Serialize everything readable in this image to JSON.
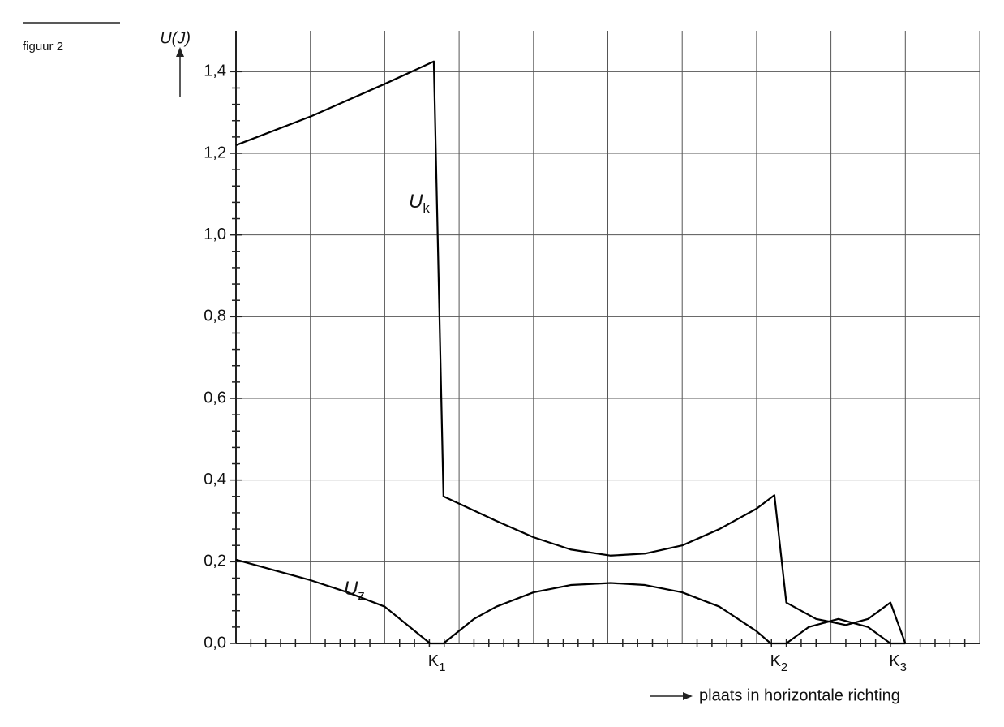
{
  "figure_label": "figuur 2",
  "chart_data": {
    "type": "line",
    "y_label": "U(J)",
    "x_label": "plaats in horizontale richting",
    "xlim": [
      0,
      10
    ],
    "xticks": [
      0,
      1,
      2,
      3,
      4,
      5,
      6,
      7,
      8,
      9,
      10
    ],
    "ylim": [
      0,
      1.5
    ],
    "yticks": [
      {
        "value": 0,
        "label": "0,0"
      },
      {
        "value": 0.2,
        "label": "0,2"
      },
      {
        "value": 0.4,
        "label": "0,4"
      },
      {
        "value": 0.6,
        "label": "0,6"
      },
      {
        "value": 0.8,
        "label": "0,8"
      },
      {
        "value": 1.0,
        "label": "1,0"
      },
      {
        "value": 1.2,
        "label": "1,2"
      },
      {
        "value": 1.4,
        "label": "1,4"
      }
    ],
    "grid": true,
    "x_markers": [
      {
        "label": "K",
        "sub": "1",
        "x": 2.7
      },
      {
        "label": "K",
        "sub": "2",
        "x": 7.3
      },
      {
        "label": "K",
        "sub": "3",
        "x": 8.9
      }
    ],
    "series": [
      {
        "name": "U",
        "name_sub": "k",
        "color": "#000000",
        "x": [
          0,
          1,
          2,
          2.66,
          2.79,
          3.5,
          4,
          4.5,
          5.04,
          5.5,
          6,
          6.5,
          7,
          7.24,
          7.4,
          7.8,
          8.2,
          8.5,
          8.8,
          9.0
        ],
        "values": [
          1.22,
          1.29,
          1.37,
          1.425,
          0.36,
          0.3,
          0.26,
          0.23,
          0.215,
          0.22,
          0.24,
          0.28,
          0.33,
          0.363,
          0.1,
          0.06,
          0.045,
          0.06,
          0.1,
          0
        ]
      },
      {
        "name": "U",
        "name_sub": "z",
        "color": "#000000",
        "x": [
          0,
          0.5,
          1,
          1.5,
          2,
          2.61,
          2.79,
          3.2,
          3.5,
          4,
          4.5,
          5.04,
          5.5,
          6,
          6.5,
          7,
          7.19,
          7.4,
          7.7,
          8.1,
          8.5,
          8.8,
          9.0
        ],
        "values": [
          0.205,
          0.18,
          0.155,
          0.125,
          0.09,
          0,
          0,
          0.06,
          0.09,
          0.125,
          0.143,
          0.148,
          0.143,
          0.125,
          0.09,
          0.03,
          0,
          0,
          0.04,
          0.06,
          0.04,
          0,
          0
        ]
      }
    ]
  }
}
